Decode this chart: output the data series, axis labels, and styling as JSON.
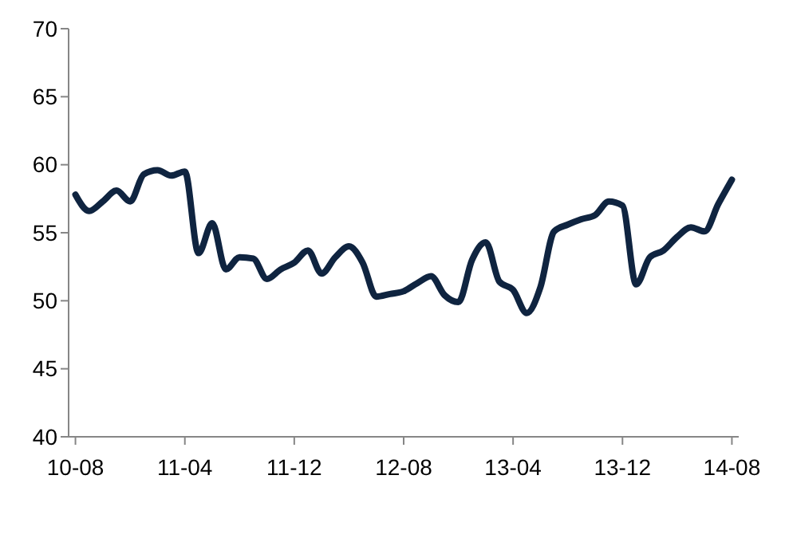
{
  "chart_data": {
    "type": "line",
    "categories": [
      "10-08",
      null,
      null,
      null,
      null,
      null,
      null,
      null,
      "11-04",
      null,
      null,
      null,
      null,
      null,
      null,
      null,
      "11-12",
      null,
      null,
      null,
      null,
      null,
      null,
      null,
      "12-08",
      null,
      null,
      null,
      null,
      null,
      null,
      null,
      "13-04",
      null,
      null,
      null,
      null,
      null,
      null,
      null,
      "13-12",
      null,
      null,
      null,
      null,
      null,
      null,
      null,
      "14-08"
    ],
    "series": [
      {
        "color": "#0f2440",
        "values": [
          57.8,
          56.6,
          57.3,
          58.1,
          57.3,
          59.3,
          59.6,
          59.2,
          59.5,
          53.5,
          55.7,
          52.3,
          53.2,
          53.1,
          51.6,
          52.3,
          52.8,
          53.7,
          52.0,
          53.2,
          54.0,
          52.8,
          50.3,
          50.5,
          50.7,
          51.3,
          51.8,
          50.4,
          49.9,
          53.0,
          54.3,
          51.4,
          50.8,
          49.1,
          51.0,
          55.1,
          55.6,
          56.0,
          56.3,
          57.3,
          57.0,
          51.2,
          53.2,
          53.7,
          54.7,
          55.4,
          55.1,
          57.1,
          58.9
        ]
      }
    ],
    "ylim": [
      40,
      70
    ],
    "yticks": [
      40,
      45,
      50,
      55,
      60,
      65,
      70
    ],
    "line_style": "solid"
  }
}
